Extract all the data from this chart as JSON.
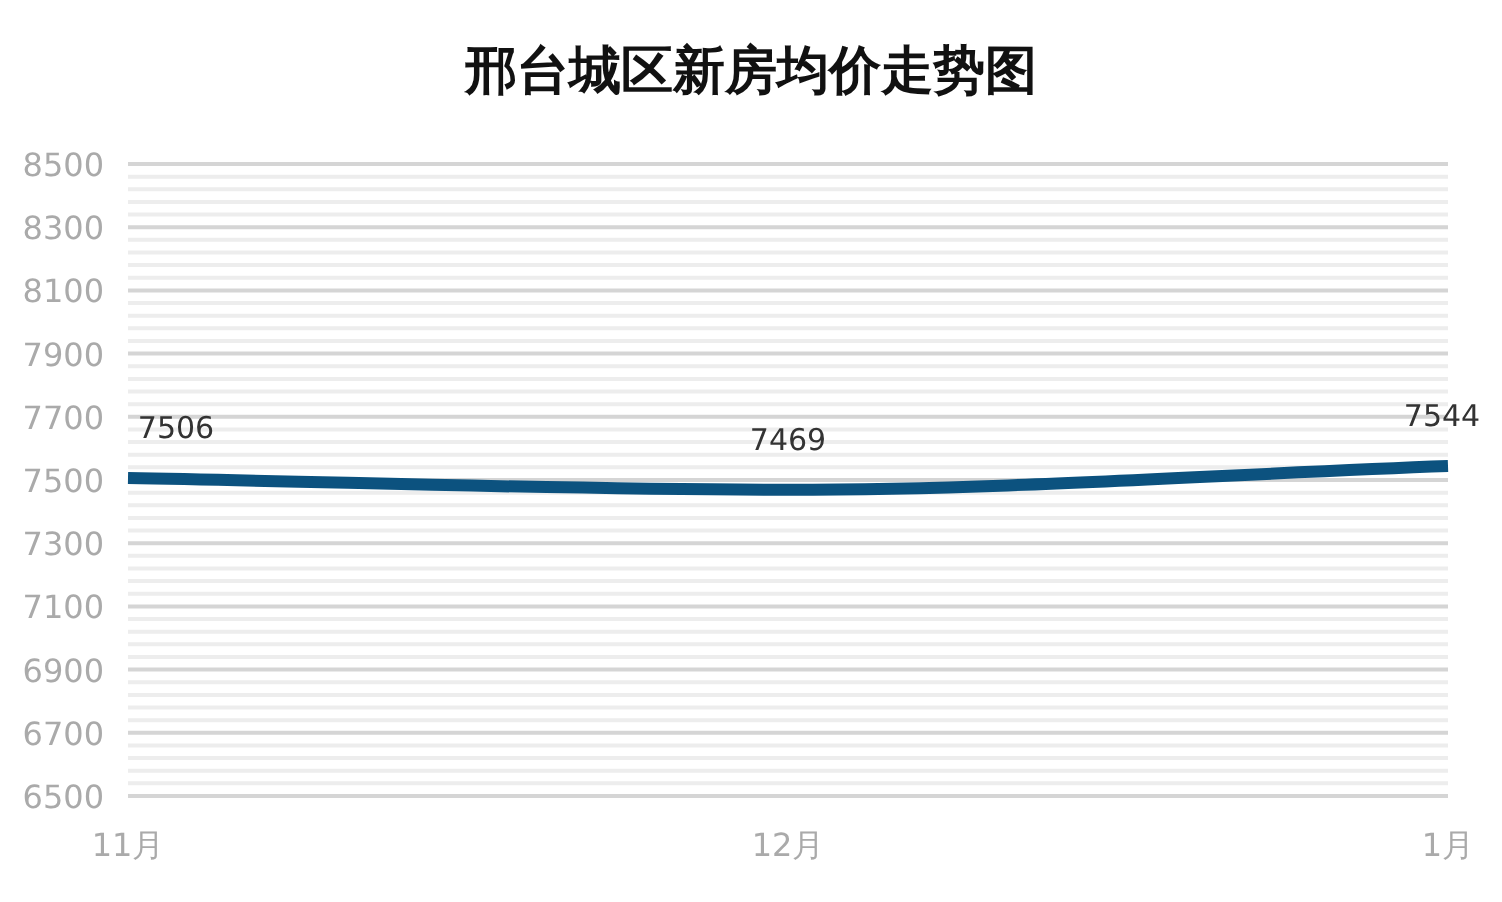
{
  "chart_data": {
    "type": "line",
    "title": "邢台城区新房均价走势图",
    "categories": [
      "11月",
      "12月",
      "1月"
    ],
    "series": [
      {
        "color": "#0c527f",
        "values": [
          7506,
          7469,
          7544
        ]
      }
    ],
    "ylim": [
      6500,
      8500
    ],
    "yticks": [
      6500,
      {
        "value": 6540,
        "label": null
      },
      {
        "value": 6580,
        "label": null
      },
      {
        "value": 6620,
        "label": null
      },
      {
        "value": 6660,
        "label": null
      },
      6700,
      {
        "value": 6740,
        "label": null
      },
      {
        "value": 6780,
        "label": null
      },
      {
        "value": 6820,
        "label": null
      },
      {
        "value": 6860,
        "label": null
      },
      6900,
      {
        "value": 6940,
        "label": null
      },
      {
        "value": 6980,
        "label": null
      },
      {
        "value": 7020,
        "label": null
      },
      {
        "value": 7060,
        "label": null
      },
      7100,
      {
        "value": 7140,
        "label": null
      },
      {
        "value": 7180,
        "label": null
      },
      {
        "value": 7220,
        "label": null
      },
      {
        "value": 7260,
        "label": null
      },
      7300,
      {
        "value": 7340,
        "label": null
      },
      {
        "value": 7380,
        "label": null
      },
      {
        "value": 7420,
        "label": null
      },
      {
        "value": 7460,
        "label": null
      },
      7500,
      {
        "value": 7540,
        "label": null
      },
      {
        "value": 7580,
        "label": null
      },
      {
        "value": 7620,
        "label": null
      },
      {
        "value": 7660,
        "label": null
      },
      7700,
      {
        "value": 7740,
        "label": null
      },
      {
        "value": 7780,
        "label": null
      },
      {
        "value": 7820,
        "label": null
      },
      {
        "value": 7860,
        "label": null
      },
      7900,
      {
        "value": 7940,
        "label": null
      },
      {
        "value": 7980,
        "label": null
      },
      {
        "value": 8020,
        "label": null
      },
      {
        "value": 8060,
        "label": null
      },
      8100,
      {
        "value": 8140,
        "label": null
      },
      {
        "value": 8180,
        "label": null
      },
      {
        "value": 8220,
        "label": null
      },
      {
        "value": 8260,
        "label": null
      },
      8300,
      {
        "value": 8340,
        "label": null
      },
      {
        "value": 8380,
        "label": null
      },
      {
        "value": 8420,
        "label": null
      },
      {
        "value": 8460,
        "label": null
      },
      8500
    ],
    "grid": "y",
    "data_labels": true,
    "marker": "none",
    "line_style": "solid"
  }
}
